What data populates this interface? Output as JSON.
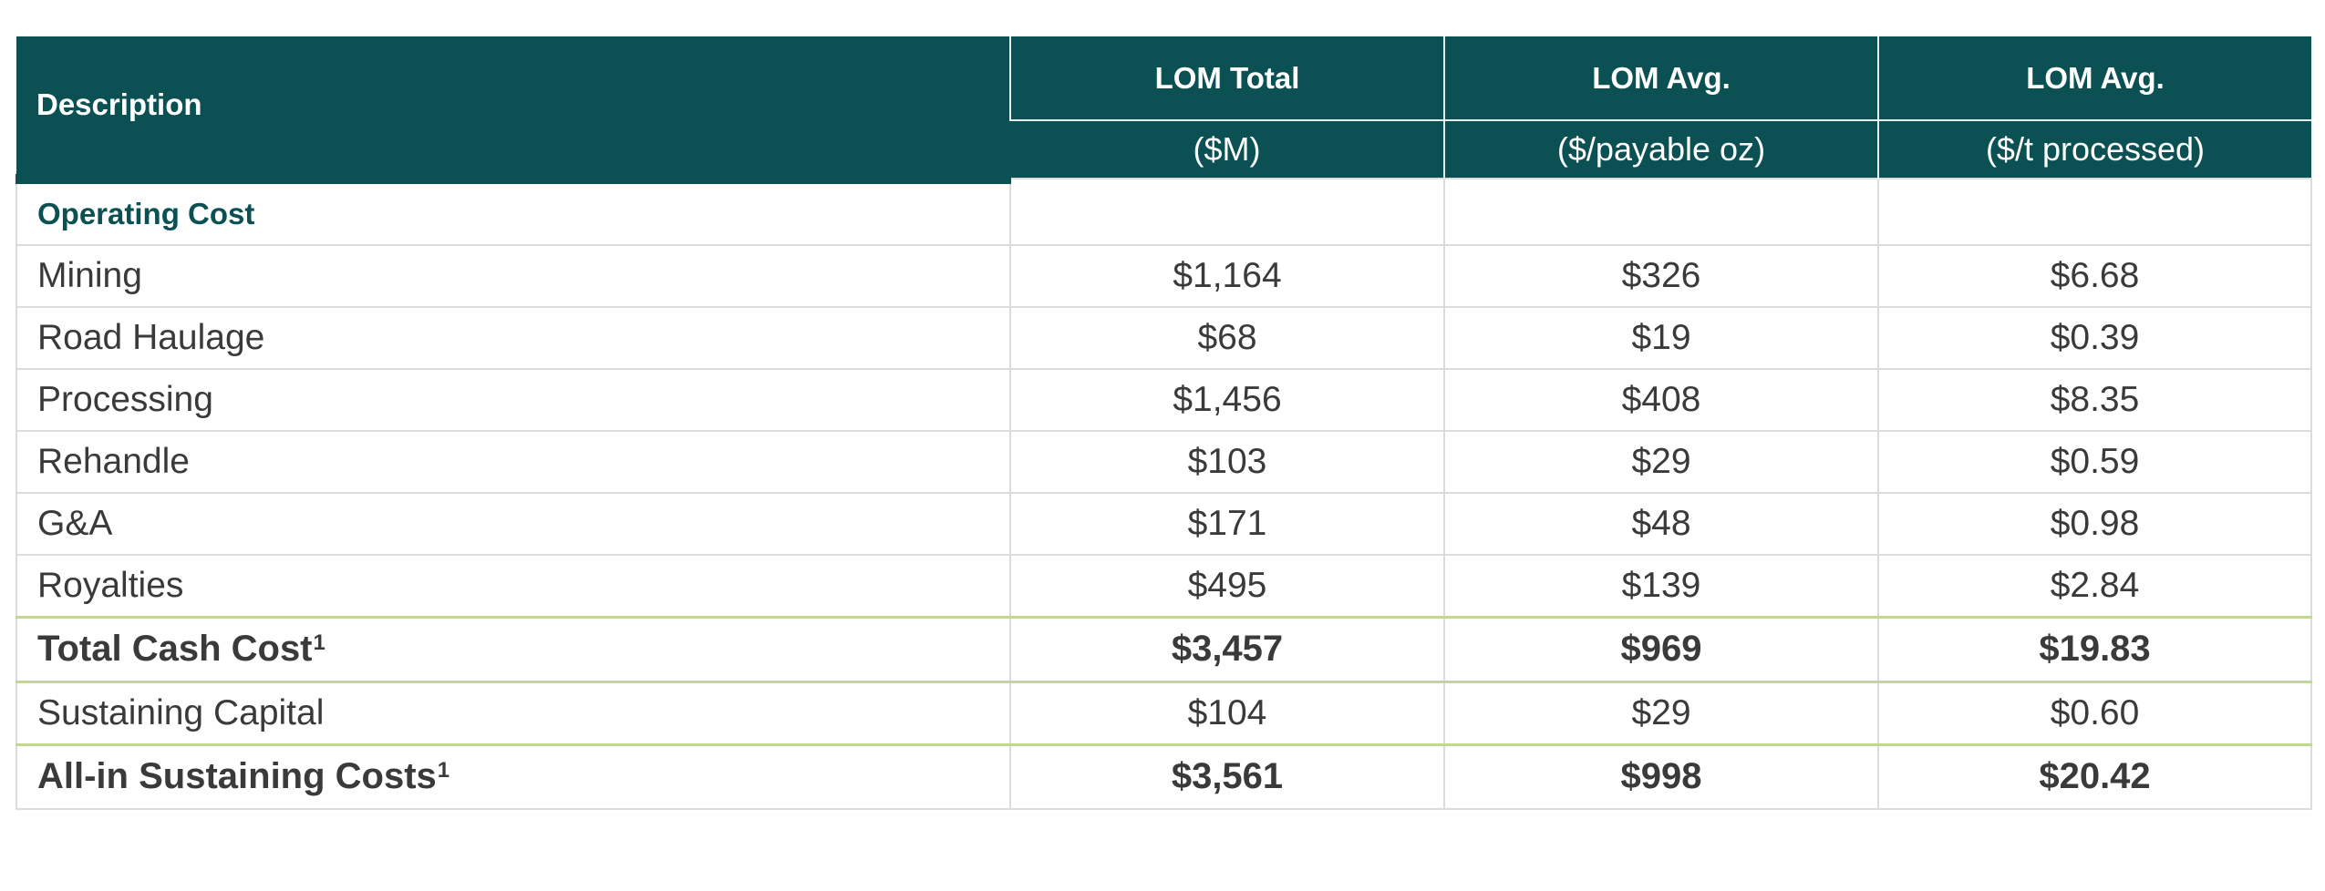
{
  "header": {
    "description": "Description",
    "col1_title": "LOM Total",
    "col1_unit": "($M)",
    "col2_title": "LOM Avg.",
    "col2_unit": "($/payable oz)",
    "col3_title": "LOM Avg.",
    "col3_unit": "($/t processed)"
  },
  "section": {
    "label": "Operating Cost"
  },
  "rows": [
    {
      "description": "Mining",
      "lom_total": "$1,164",
      "per_oz": "$326",
      "per_t": "$6.68"
    },
    {
      "description": "Road Haulage",
      "lom_total": "$68",
      "per_oz": "$19",
      "per_t": "$0.39"
    },
    {
      "description": "Processing",
      "lom_total": "$1,456",
      "per_oz": "$408",
      "per_t": "$8.35"
    },
    {
      "description": "Rehandle",
      "lom_total": "$103",
      "per_oz": "$29",
      "per_t": "$0.59"
    },
    {
      "description": "G&A",
      "lom_total": "$171",
      "per_oz": "$48",
      "per_t": "$0.98"
    },
    {
      "description": "Royalties",
      "lom_total": "$495",
      "per_oz": "$139",
      "per_t": "$2.84"
    }
  ],
  "total_cash_cost": {
    "description": "Total Cash Cost",
    "footnote": "1",
    "lom_total": "$3,457",
    "per_oz": "$969",
    "per_t": "$19.83"
  },
  "sustaining_capital": {
    "description": "Sustaining Capital",
    "lom_total": "$104",
    "per_oz": "$29",
    "per_t": "$0.60"
  },
  "aisc": {
    "description": "All-in Sustaining Costs",
    "footnote": "1",
    "lom_total": "$3,561",
    "per_oz": "$998",
    "per_t": "$20.42"
  },
  "colors": {
    "header_bg": "#0b5153",
    "section_text": "#0b5153",
    "total_rule": "#c3d88f",
    "body_text": "#3a3a3a"
  }
}
